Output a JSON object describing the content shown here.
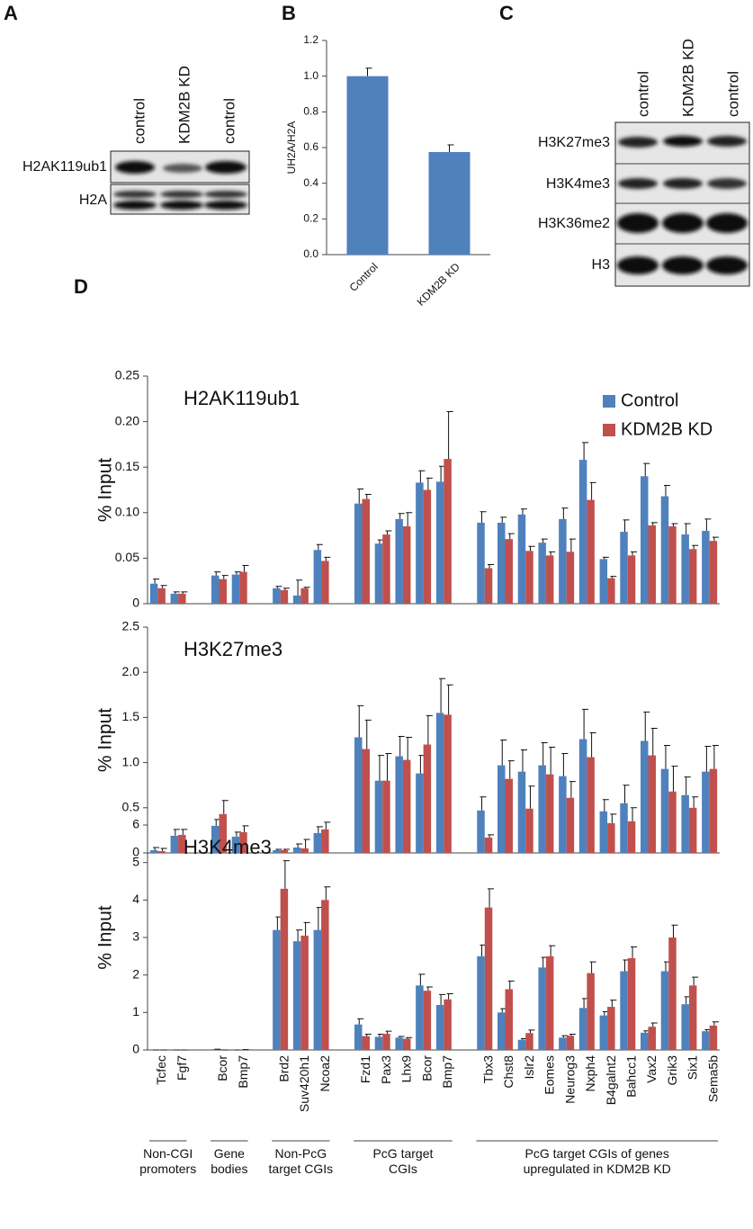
{
  "panel_labels": [
    "A",
    "B",
    "C",
    "D"
  ],
  "blot_a": {
    "lanes": [
      "control",
      "KDM2B KD",
      "control"
    ],
    "rows": [
      "H2AK119ub1",
      "H2A"
    ]
  },
  "blot_c": {
    "lanes": [
      "control",
      "KDM2B KD",
      "control"
    ],
    "rows": [
      "H3K27me3",
      "H3K4me3",
      "H3K36me2",
      "H3"
    ]
  },
  "chart_data": [
    {
      "type": "bar",
      "y_label": "UH2A/H2A",
      "categories": [
        "Control",
        "KDM2B KD"
      ],
      "values": [
        1.0,
        0.575
      ],
      "errors": [
        0.045,
        0.04
      ],
      "color": "#4f81bd",
      "ylim": [
        0,
        1.2
      ],
      "yticks": [
        {
          "value": 0,
          "label": "0.0"
        },
        0.2,
        0.4,
        0.6,
        0.8,
        {
          "value": 1,
          "label": "1.0"
        },
        1.2
      ]
    },
    {
      "type": "grouped_bar",
      "title": "H2AK119ub1",
      "y_label": "% Input",
      "legend": "upper right",
      "ylim": [
        0,
        0.25
      ],
      "yticks": [
        0,
        0.05,
        {
          "value": 0.1,
          "label": "0.10"
        },
        0.15,
        {
          "value": 0.2,
          "label": "0.20"
        },
        0.25
      ],
      "series": [
        {
          "name": "Control",
          "color": "#4f81bd",
          "values": [
            0.022,
            0.011,
            0.031,
            0.032,
            0.017,
            0.009,
            0.059,
            0.11,
            0.066,
            0.093,
            0.133,
            0.134,
            0.089,
            0.089,
            0.098,
            0.067,
            0.093,
            0.158,
            0.049,
            0.079,
            0.14,
            0.118,
            0.076,
            0.08
          ],
          "errors": [
            0.005,
            0.002,
            0.004,
            0.003,
            0.002,
            0.017,
            0.006,
            0.016,
            0.004,
            0.006,
            0.013,
            0.017,
            0.012,
            0.006,
            0.006,
            0.004,
            0.012,
            0.019,
            0.002,
            0.013,
            0.014,
            0.012,
            0.012,
            0.013
          ]
        },
        {
          "name": "KDM2B KD",
          "color": "#c0504d",
          "values": [
            0.017,
            0.011,
            0.027,
            0.035,
            0.015,
            0.017,
            0.047,
            0.115,
            0.076,
            0.085,
            0.125,
            0.159,
            0.039,
            0.071,
            0.058,
            0.053,
            0.057,
            0.114,
            0.028,
            0.053,
            0.086,
            0.085,
            0.06,
            0.069
          ],
          "errors": [
            0.003,
            0.002,
            0.004,
            0.007,
            0.002,
            0.001,
            0.004,
            0.005,
            0.004,
            0.015,
            0.013,
            0.052,
            0.004,
            0.006,
            0.005,
            0.004,
            0.014,
            0.019,
            0.002,
            0.004,
            0.003,
            0.003,
            0.004,
            0.004
          ]
        }
      ]
    },
    {
      "type": "grouped_bar",
      "title": "H3K27me3",
      "y_label": "% Input",
      "ylim": [
        0,
        2.5
      ],
      "yticks": [
        0,
        0.5,
        {
          "value": 1,
          "label": "1.0"
        },
        1.5,
        {
          "value": 2,
          "label": "2.0"
        },
        2.5
      ],
      "series": [
        {
          "color": "#4f81bd",
          "values": [
            0.03,
            0.19,
            0.3,
            0.18,
            0.03,
            0.06,
            0.22,
            1.28,
            0.8,
            1.07,
            0.88,
            1.55,
            0.47,
            0.97,
            0.9,
            0.97,
            0.85,
            1.26,
            0.46,
            0.55,
            1.24,
            0.93,
            0.64,
            0.9
          ],
          "errors": [
            0.03,
            0.07,
            0.07,
            0.05,
            0.01,
            0.04,
            0.07,
            0.35,
            0.28,
            0.22,
            0.2,
            0.38,
            0.15,
            0.28,
            0.24,
            0.25,
            0.25,
            0.33,
            0.13,
            0.2,
            0.32,
            0.26,
            0.2,
            0.28
          ]
        },
        {
          "color": "#c0504d",
          "values": [
            0.02,
            0.2,
            0.43,
            0.23,
            0.03,
            0.05,
            0.26,
            1.15,
            0.8,
            1.03,
            1.2,
            1.53,
            0.17,
            0.82,
            0.49,
            0.87,
            0.61,
            1.06,
            0.33,
            0.35,
            1.08,
            0.68,
            0.5,
            0.93
          ],
          "errors": [
            0.03,
            0.06,
            0.15,
            0.07,
            0.01,
            0.1,
            0.08,
            0.32,
            0.3,
            0.25,
            0.32,
            0.33,
            0.03,
            0.2,
            0.25,
            0.3,
            0.18,
            0.27,
            0.1,
            0.15,
            0.3,
            0.28,
            0.12,
            0.26
          ]
        }
      ]
    },
    {
      "type": "grouped_bar",
      "title": "H3K4me3",
      "y_label": "% Input",
      "ylim": [
        0,
        6
      ],
      "yticks": [
        0,
        1,
        2,
        3,
        4,
        5,
        6
      ],
      "groups": [
        {
          "label": "Non-CGI promoters",
          "categories": [
            "Tcfec",
            "Fgf7"
          ]
        },
        {
          "label": "Gene bodies",
          "categories": [
            "Bcor",
            "Bmp7"
          ]
        },
        {
          "label": "Non-PcG target CGIs",
          "categories": [
            "Brd2",
            "Suv420h1",
            "Ncoa2"
          ]
        },
        {
          "label": "PcG target CGIs",
          "categories": [
            "Fzd1",
            "Pax3",
            "Lhx9",
            "Bcor",
            "Bmp7"
          ]
        },
        {
          "label": "PcG target CGIs of genes upregulated in KDM2B KD",
          "categories": [
            "Tbx3",
            "Chst8",
            "Islr2",
            "Eomes",
            "Neurog3",
            "Nxph4",
            "B4galnt2",
            "Bahcc1",
            "Vax2",
            "Grik3",
            "Six1",
            "Sema5b"
          ]
        }
      ],
      "series": [
        {
          "color": "#4f81bd",
          "values": [
            0,
            0,
            0.02,
            0,
            3.2,
            2.9,
            3.2,
            0.68,
            0.35,
            0.33,
            1.72,
            1.2,
            2.5,
            1.0,
            0.27,
            2.2,
            0.33,
            1.12,
            0.92,
            2.1,
            0.46,
            2.1,
            1.22,
            0.5
          ],
          "errors": [
            0,
            0,
            0,
            0,
            0.35,
            0.3,
            0.6,
            0.15,
            0.07,
            0.03,
            0.3,
            0.28,
            0.3,
            0.1,
            0.03,
            0.27,
            0.05,
            0.25,
            0.1,
            0.3,
            0.05,
            0.25,
            0.2,
            0.04
          ]
        },
        {
          "color": "#c0504d",
          "values": [
            0,
            0,
            0,
            0.01,
            4.3,
            3.05,
            4.0,
            0.37,
            0.43,
            0.3,
            1.58,
            1.35,
            3.8,
            1.62,
            0.45,
            2.5,
            0.38,
            2.05,
            1.15,
            2.45,
            0.62,
            3.0,
            1.72,
            0.65
          ],
          "errors": [
            0,
            0,
            0,
            0,
            0.75,
            0.35,
            0.35,
            0.05,
            0.07,
            0.03,
            0.1,
            0.15,
            0.5,
            0.22,
            0.08,
            0.28,
            0.04,
            0.3,
            0.18,
            0.3,
            0.1,
            0.33,
            0.22,
            0.1
          ]
        }
      ]
    }
  ]
}
